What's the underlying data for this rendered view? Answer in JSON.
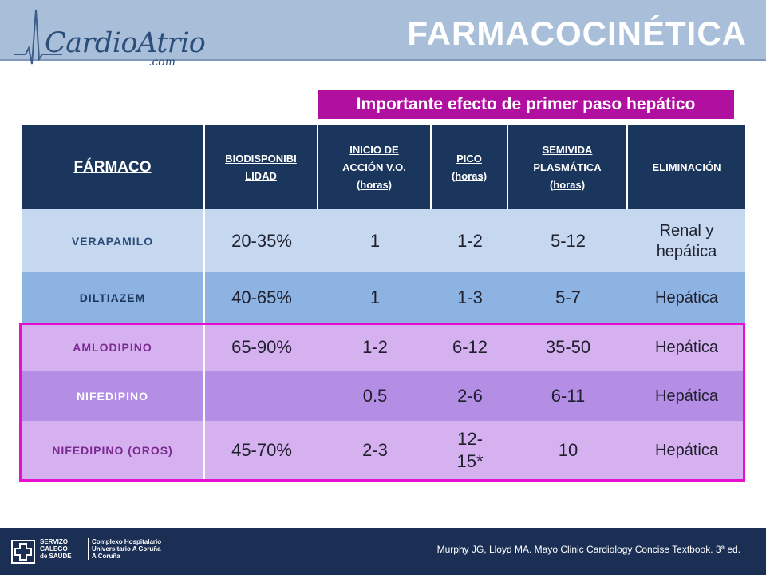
{
  "header": {
    "logo_text": "CardioAtrio",
    "logo_suffix": ".com",
    "title": "FARMACOCINÉTICA"
  },
  "callout": "Importante efecto de primer paso hepático",
  "table": {
    "headers": [
      [
        "FÁRMACO"
      ],
      [
        "BIODISPONIBI",
        "LIDAD"
      ],
      [
        "INICIO DE",
        "ACCIÓN V.O.",
        "(horas)"
      ],
      [
        "PICO",
        "(horas)"
      ],
      [
        "SEMIVIDA",
        "PLASMÁTICA",
        "(horas)"
      ],
      [
        "ELIMINACIÓN"
      ]
    ],
    "rows": [
      {
        "drug": "VERAPAMILO",
        "bio": "20-35%",
        "onset": "1",
        "peak": "1-2",
        "half_life": "5-12",
        "elim": "Renal y hepática"
      },
      {
        "drug": "DILTIAZEM",
        "bio": "40-65%",
        "onset": "1",
        "peak": "1-3",
        "half_life": "5-7",
        "elim": "Hepática"
      },
      {
        "drug": "AMLODIPINO",
        "bio": "65-90%",
        "onset": "1-2",
        "peak": "6-12",
        "half_life": "35-50",
        "elim": "Hepática"
      },
      {
        "drug": "NIFEDIPINO",
        "bio": "",
        "onset": "0.5",
        "peak": "2-6",
        "half_life": "6-11",
        "elim": "Hepática"
      },
      {
        "drug": "NIFEDIPINO (OROS)",
        "bio": "45-70%",
        "onset": "2-3",
        "peak": "12-15*",
        "half_life": "10",
        "elim": "Hepática"
      }
    ]
  },
  "colors": {
    "header_bg": "#1b365d",
    "row_colors": [
      "#c5d8ef",
      "#8db3e2",
      "#d6b1f0",
      "#b48de4",
      "#d6b1f0"
    ],
    "name_colors": [
      "#2a4d7a",
      "#1b365d",
      "#7a2a90",
      "#ffffff",
      "#7a2a90"
    ],
    "highlight": "#e60fd0"
  },
  "footer": {
    "org_lines": [
      "SERVIZO",
      "GALEGO",
      "de SAÚDE"
    ],
    "hospital_lines": [
      "Complexo Hospitalario",
      "Universitario A Coruña",
      "A Coruña"
    ],
    "citation": "Murphy JG, Lloyd MA. Mayo Clinic Cardiology Concise Textbook. 3ª ed."
  }
}
